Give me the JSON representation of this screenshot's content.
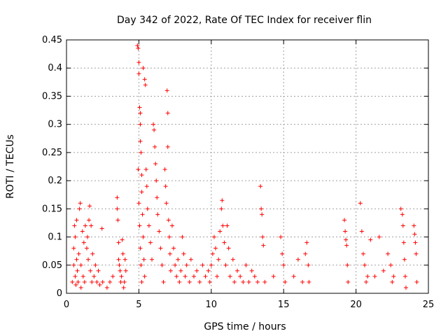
{
  "chart_data": {
    "type": "scatter",
    "title": "Day 342 of 2022, Rate Of TEC Index for receiver flin",
    "xlabel": "GPS time / hours",
    "ylabel": "ROTI / TECUs",
    "xlim": [
      0,
      25
    ],
    "ylim": [
      0,
      0.45
    ],
    "xticks": [
      "0",
      "5",
      "10",
      "15",
      "20",
      "25"
    ],
    "yticks": [
      "0",
      "0.05",
      "0.1",
      "0.15",
      "0.2",
      "0.25",
      "0.3",
      "0.35",
      "0.4",
      "0.45"
    ],
    "grid": true,
    "marker": "plus",
    "color": "#ff0000",
    "series": [
      {
        "name": "",
        "points": [
          [
            0.4,
            0.02
          ],
          [
            0.5,
            0.08
          ],
          [
            0.5,
            0.05
          ],
          [
            0.55,
            0.12
          ],
          [
            0.6,
            0.1
          ],
          [
            0.6,
            0.03
          ],
          [
            0.65,
            0.015
          ],
          [
            0.7,
            0.13
          ],
          [
            0.7,
            0.06
          ],
          [
            0.75,
            0.04
          ],
          [
            0.8,
            0.02
          ],
          [
            0.85,
            0.07
          ],
          [
            0.9,
            0.15
          ],
          [
            0.95,
            0.16
          ],
          [
            1.0,
            0.01
          ],
          [
            1.0,
            0.05
          ],
          [
            1.1,
            0.11
          ],
          [
            1.15,
            0.03
          ],
          [
            1.2,
            0.09
          ],
          [
            1.25,
            0.02
          ],
          [
            1.3,
            0.12
          ],
          [
            1.4,
            0.08
          ],
          [
            1.45,
            0.1
          ],
          [
            1.5,
            0.06
          ],
          [
            1.55,
            0.13
          ],
          [
            1.6,
            0.155
          ],
          [
            1.65,
            0.04
          ],
          [
            1.7,
            0.12
          ],
          [
            1.75,
            0.02
          ],
          [
            1.8,
            0.07
          ],
          [
            1.9,
            0.03
          ],
          [
            2.0,
            0.05
          ],
          [
            2.1,
            0.02
          ],
          [
            2.2,
            0.04
          ],
          [
            2.3,
            0.015
          ],
          [
            2.45,
            0.115
          ],
          [
            2.5,
            0.02
          ],
          [
            2.8,
            0.01
          ],
          [
            3.0,
            0.02
          ],
          [
            3.2,
            0.03
          ],
          [
            3.5,
            0.15
          ],
          [
            3.5,
            0.17
          ],
          [
            3.55,
            0.13
          ],
          [
            3.6,
            0.09
          ],
          [
            3.6,
            0.06
          ],
          [
            3.65,
            0.05
          ],
          [
            3.7,
            0.04
          ],
          [
            3.75,
            0.02
          ],
          [
            3.8,
            0.03
          ],
          [
            3.85,
            0.095
          ],
          [
            3.9,
            0.07
          ],
          [
            3.95,
            0.01
          ],
          [
            4.0,
            0.02
          ],
          [
            4.05,
            0.06
          ],
          [
            4.1,
            0.04
          ],
          [
            4.9,
            0.44
          ],
          [
            4.95,
            0.435
          ],
          [
            5.0,
            0.41
          ],
          [
            5.0,
            0.39
          ],
          [
            5.05,
            0.33
          ],
          [
            5.1,
            0.32
          ],
          [
            5.1,
            0.3
          ],
          [
            5.1,
            0.27
          ],
          [
            5.15,
            0.25
          ],
          [
            5.2,
            0.21
          ],
          [
            5.2,
            0.18
          ],
          [
            5.25,
            0.14
          ],
          [
            5.3,
            0.1
          ],
          [
            5.35,
            0.06
          ],
          [
            5.4,
            0.03
          ],
          [
            4.95,
            0.22
          ],
          [
            5.0,
            0.16
          ],
          [
            5.05,
            0.12
          ],
          [
            5.1,
            0.08
          ],
          [
            5.15,
            0.05
          ],
          [
            5.2,
            0.02
          ],
          [
            5.3,
            0.4
          ],
          [
            5.4,
            0.38
          ],
          [
            5.45,
            0.37
          ],
          [
            5.5,
            0.22
          ],
          [
            5.55,
            0.19
          ],
          [
            5.6,
            0.15
          ],
          [
            5.7,
            0.12
          ],
          [
            5.8,
            0.09
          ],
          [
            5.9,
            0.06
          ],
          [
            6.0,
            0.3
          ],
          [
            6.05,
            0.29
          ],
          [
            6.1,
            0.26
          ],
          [
            6.15,
            0.23
          ],
          [
            6.2,
            0.2
          ],
          [
            6.25,
            0.17
          ],
          [
            6.3,
            0.14
          ],
          [
            6.4,
            0.11
          ],
          [
            6.5,
            0.08
          ],
          [
            6.6,
            0.05
          ],
          [
            6.7,
            0.02
          ],
          [
            6.8,
            0.22
          ],
          [
            6.85,
            0.19
          ],
          [
            6.9,
            0.16
          ],
          [
            6.95,
            0.36
          ],
          [
            7.0,
            0.32
          ],
          [
            7.0,
            0.26
          ],
          [
            7.05,
            0.13
          ],
          [
            7.1,
            0.1
          ],
          [
            7.15,
            0.07
          ],
          [
            7.2,
            0.04
          ],
          [
            7.3,
            0.12
          ],
          [
            7.4,
            0.08
          ],
          [
            7.5,
            0.05
          ],
          [
            7.6,
            0.03
          ],
          [
            7.7,
            0.06
          ],
          [
            7.8,
            0.02
          ],
          [
            7.9,
            0.04
          ],
          [
            8.0,
            0.1
          ],
          [
            8.1,
            0.07
          ],
          [
            8.2,
            0.03
          ],
          [
            8.3,
            0.05
          ],
          [
            8.5,
            0.02
          ],
          [
            8.6,
            0.06
          ],
          [
            8.8,
            0.03
          ],
          [
            9.0,
            0.04
          ],
          [
            9.2,
            0.02
          ],
          [
            9.4,
            0.05
          ],
          [
            9.6,
            0.03
          ],
          [
            9.8,
            0.04
          ],
          [
            9.9,
            0.02
          ],
          [
            10.0,
            0.05
          ],
          [
            10.1,
            0.07
          ],
          [
            10.2,
            0.1
          ],
          [
            10.3,
            0.08
          ],
          [
            10.4,
            0.03
          ],
          [
            10.5,
            0.06
          ],
          [
            10.6,
            0.11
          ],
          [
            10.7,
            0.15
          ],
          [
            10.75,
            0.165
          ],
          [
            10.8,
            0.12
          ],
          [
            10.9,
            0.09
          ],
          [
            11.0,
            0.05
          ],
          [
            11.1,
            0.12
          ],
          [
            11.2,
            0.08
          ],
          [
            11.3,
            0.03
          ],
          [
            11.5,
            0.06
          ],
          [
            11.6,
            0.02
          ],
          [
            11.8,
            0.04
          ],
          [
            12.0,
            0.03
          ],
          [
            12.2,
            0.02
          ],
          [
            12.4,
            0.05
          ],
          [
            12.6,
            0.02
          ],
          [
            12.8,
            0.04
          ],
          [
            13.0,
            0.03
          ],
          [
            13.2,
            0.02
          ],
          [
            13.4,
            0.19
          ],
          [
            13.45,
            0.15
          ],
          [
            13.5,
            0.14
          ],
          [
            13.55,
            0.1
          ],
          [
            13.6,
            0.085
          ],
          [
            13.7,
            0.02
          ],
          [
            14.3,
            0.03
          ],
          [
            14.8,
            0.1
          ],
          [
            14.9,
            0.07
          ],
          [
            15.0,
            0.05
          ],
          [
            15.1,
            0.02
          ],
          [
            15.7,
            0.03
          ],
          [
            16.0,
            0.06
          ],
          [
            16.3,
            0.02
          ],
          [
            16.5,
            0.07
          ],
          [
            16.6,
            0.09
          ],
          [
            16.7,
            0.05
          ],
          [
            16.75,
            0.02
          ],
          [
            19.2,
            0.13
          ],
          [
            19.25,
            0.11
          ],
          [
            19.3,
            0.095
          ],
          [
            19.35,
            0.085
          ],
          [
            19.4,
            0.05
          ],
          [
            19.45,
            0.02
          ],
          [
            20.3,
            0.16
          ],
          [
            20.4,
            0.11
          ],
          [
            20.5,
            0.07
          ],
          [
            20.6,
            0.05
          ],
          [
            20.7,
            0.02
          ],
          [
            20.8,
            0.03
          ],
          [
            21.0,
            0.095
          ],
          [
            21.3,
            0.03
          ],
          [
            21.6,
            0.1
          ],
          [
            21.9,
            0.04
          ],
          [
            22.2,
            0.07
          ],
          [
            22.4,
            0.05
          ],
          [
            22.5,
            0.02
          ],
          [
            22.6,
            0.03
          ],
          [
            23.1,
            0.15
          ],
          [
            23.2,
            0.14
          ],
          [
            23.25,
            0.12
          ],
          [
            23.3,
            0.09
          ],
          [
            23.35,
            0.06
          ],
          [
            23.4,
            0.03
          ],
          [
            23.45,
            0.01
          ],
          [
            24.0,
            0.12
          ],
          [
            24.05,
            0.105
          ],
          [
            24.1,
            0.09
          ],
          [
            24.15,
            0.07
          ],
          [
            24.2,
            0.02
          ]
        ]
      }
    ]
  }
}
